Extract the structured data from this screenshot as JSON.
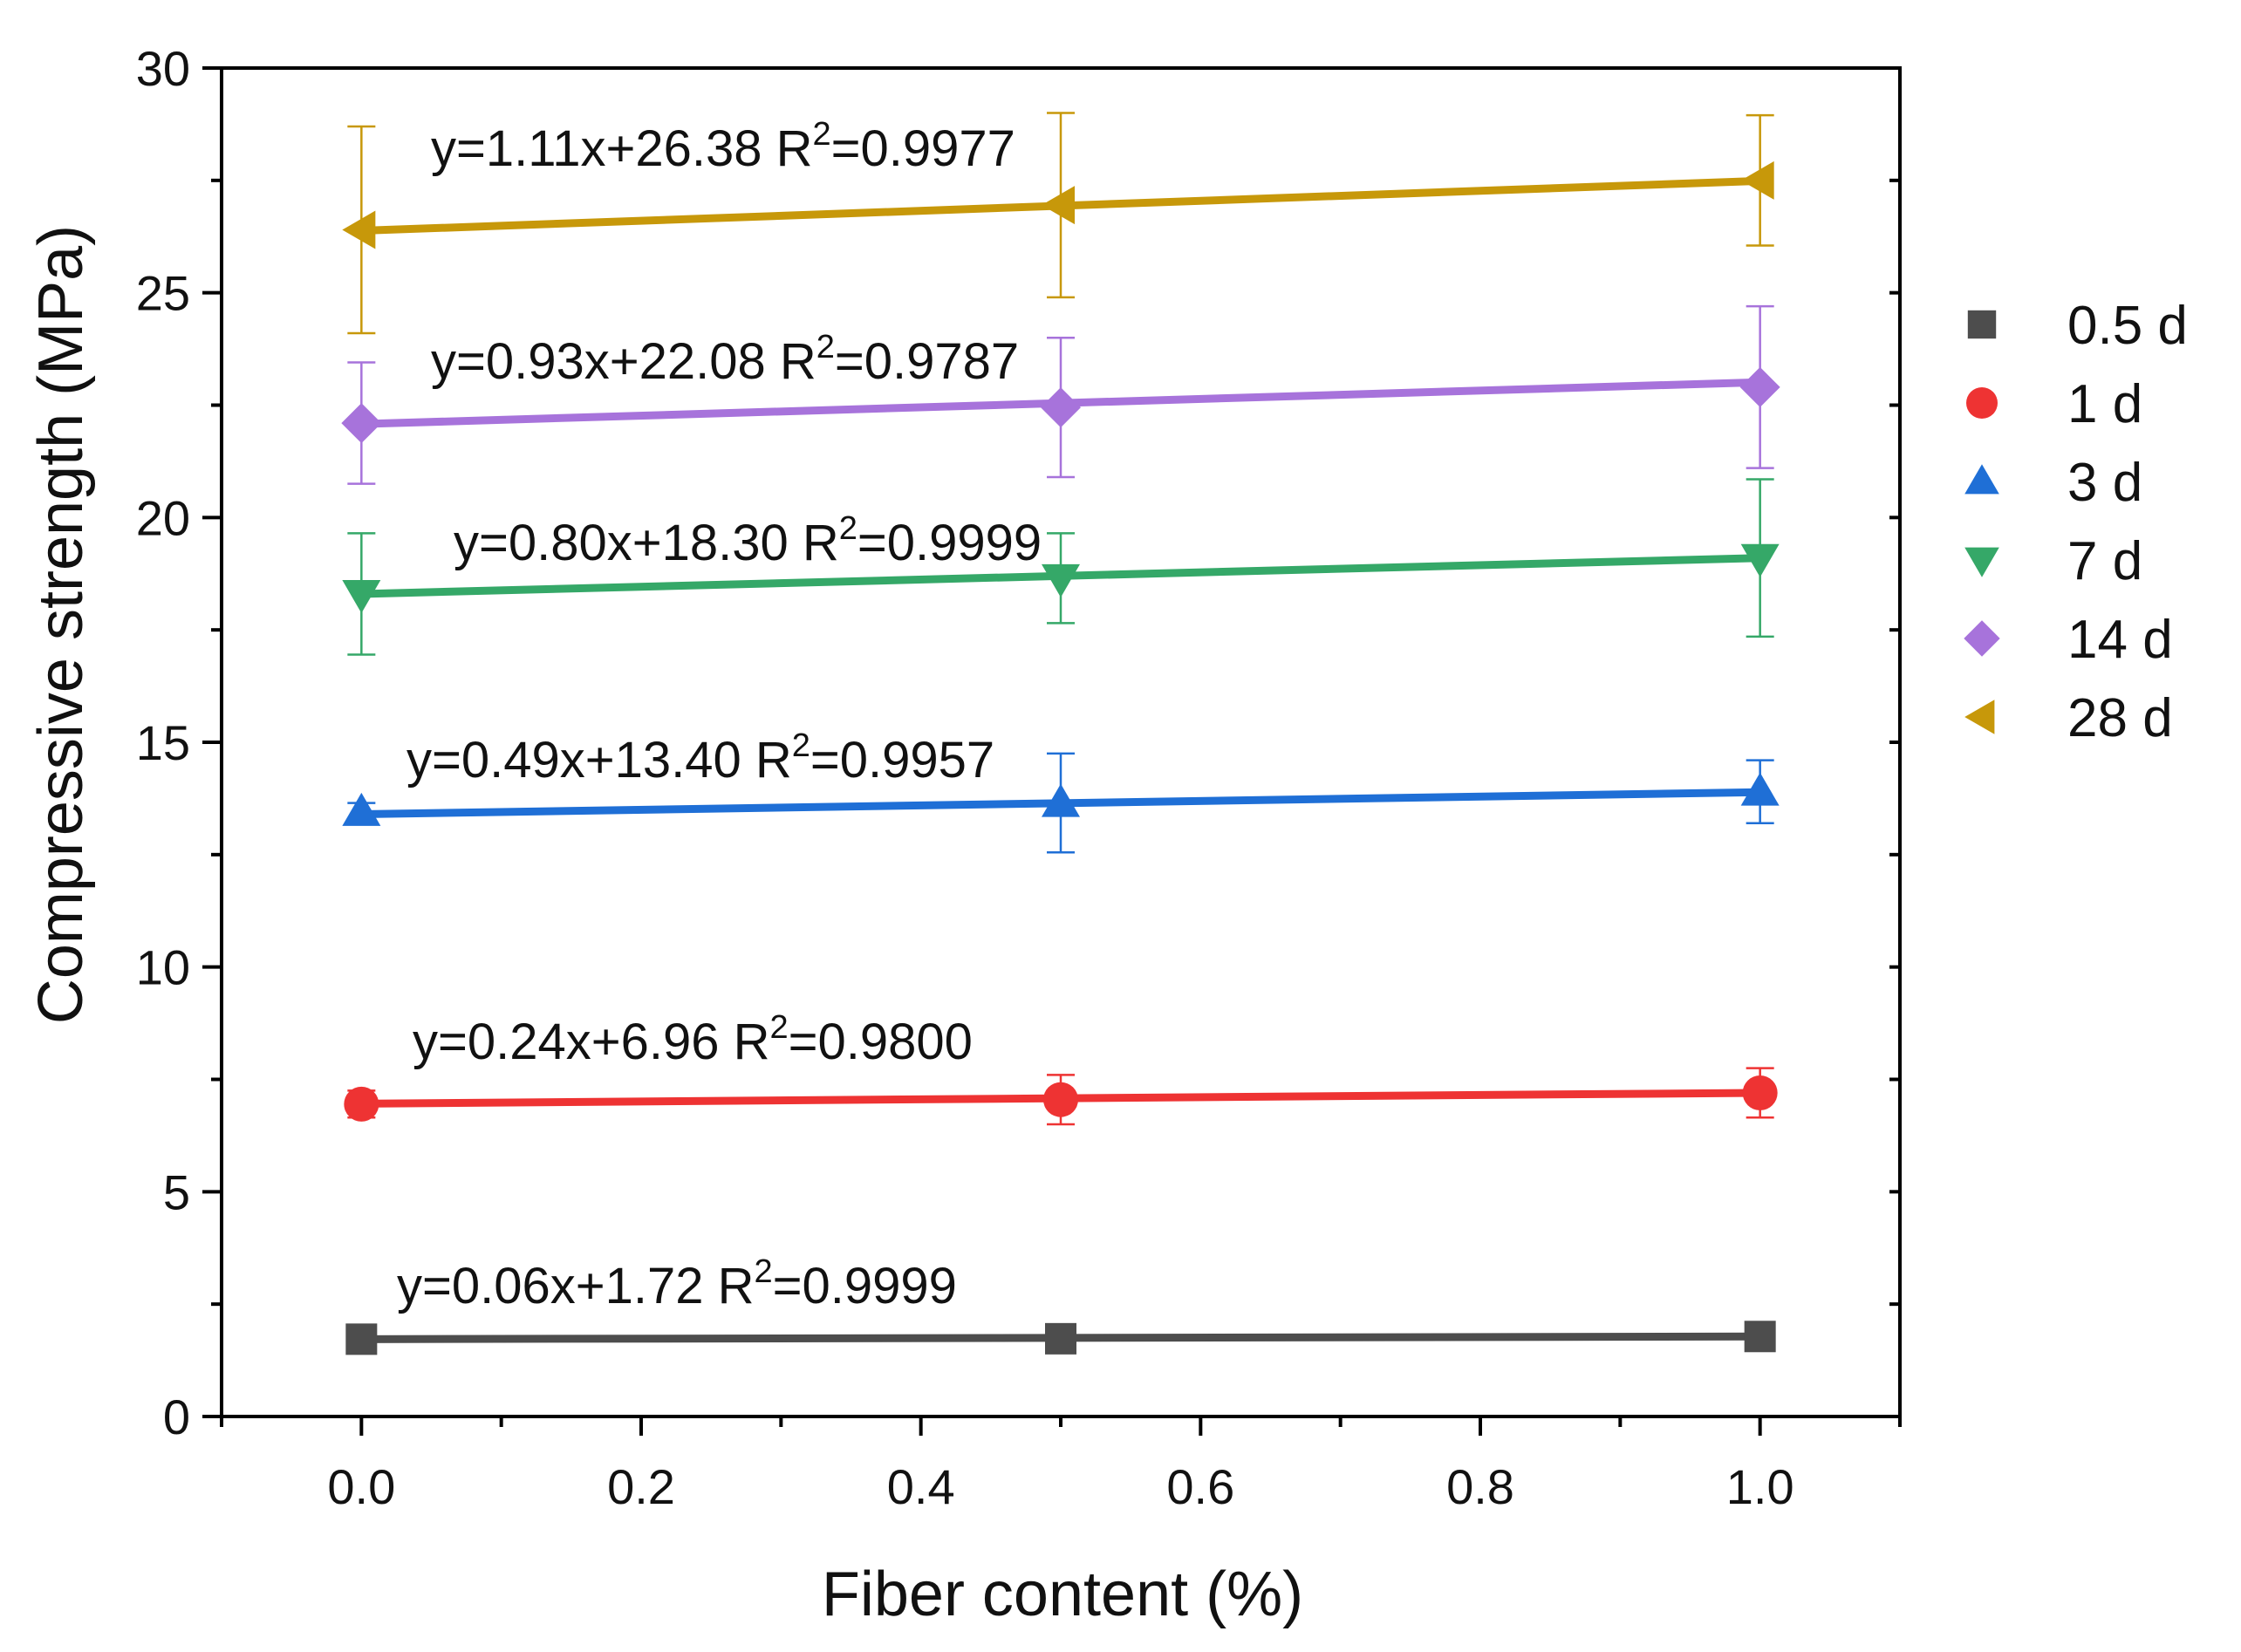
{
  "chart_data": {
    "type": "line",
    "xlabel": "Fiber content (%)",
    "ylabel": "Compressive strength (MPa)",
    "xlim": [
      -0.1,
      1.1
    ],
    "ylim": [
      0,
      30
    ],
    "xticks": [
      "0.0",
      "0.2",
      "0.4",
      "0.6",
      "0.8",
      "1.0"
    ],
    "yticks": [
      "0",
      "5",
      "10",
      "15",
      "20",
      "25",
      "30"
    ],
    "x": [
      0.0,
      0.5,
      1.0
    ],
    "legend_position": "right",
    "series": [
      {
        "name": "0.5 d",
        "marker": "square",
        "color": "#4d4d4d",
        "values": [
          1.72,
          1.73,
          1.78
        ],
        "errors": [
          0.05,
          0.05,
          0.05
        ],
        "fit": {
          "slope": 0.06,
          "intercept": 1.72
        },
        "equation": {
          "main": "y=0.06x+1.72 R",
          "sup": "2",
          "tail": "=0.9999"
        }
      },
      {
        "name": "1 d",
        "marker": "circle",
        "color": "#ee3333",
        "values": [
          6.95,
          7.05,
          7.2
        ],
        "errors": [
          0.3,
          0.55,
          0.55
        ],
        "fit": {
          "slope": 0.24,
          "intercept": 6.96
        },
        "equation": {
          "main": "y=0.24x+6.96 R",
          "sup": "2",
          "tail": "=0.9800"
        }
      },
      {
        "name": "3 d",
        "marker": "triangle-up",
        "color": "#1f6fd6",
        "values": [
          13.45,
          13.65,
          13.9
        ],
        "errors": [
          0.2,
          1.1,
          0.7
        ],
        "fit": {
          "slope": 0.49,
          "intercept": 13.4
        },
        "equation": {
          "main": "y=0.49x+13.40 R",
          "sup": "2",
          "tail": "=0.9957"
        }
      },
      {
        "name": "7 d",
        "marker": "triangle-down",
        "color": "#35a868",
        "values": [
          18.3,
          18.65,
          19.1
        ],
        "errors": [
          1.35,
          1.0,
          1.75
        ],
        "fit": {
          "slope": 0.8,
          "intercept": 18.3
        },
        "equation": {
          "main": "y=0.80x+18.30 R",
          "sup": "2",
          "tail": "=0.9999"
        }
      },
      {
        "name": "14 d",
        "marker": "diamond",
        "color": "#a773db",
        "values": [
          22.1,
          22.45,
          22.9
        ],
        "errors": [
          1.35,
          1.55,
          1.8
        ],
        "fit": {
          "slope": 0.93,
          "intercept": 22.08
        },
        "equation": {
          "main": "y=0.93x+22.08 R",
          "sup": "2",
          "tail": "=0.9787"
        }
      },
      {
        "name": "28 d",
        "marker": "triangle-left",
        "color": "#c7980a",
        "values": [
          26.4,
          26.95,
          27.5
        ],
        "errors": [
          2.3,
          2.05,
          1.45
        ],
        "fit": {
          "slope": 1.11,
          "intercept": 26.38
        },
        "equation": {
          "main": "y=1.11x+26.38 R",
          "sup": "2",
          "tail": "=0.9977"
        }
      }
    ]
  }
}
